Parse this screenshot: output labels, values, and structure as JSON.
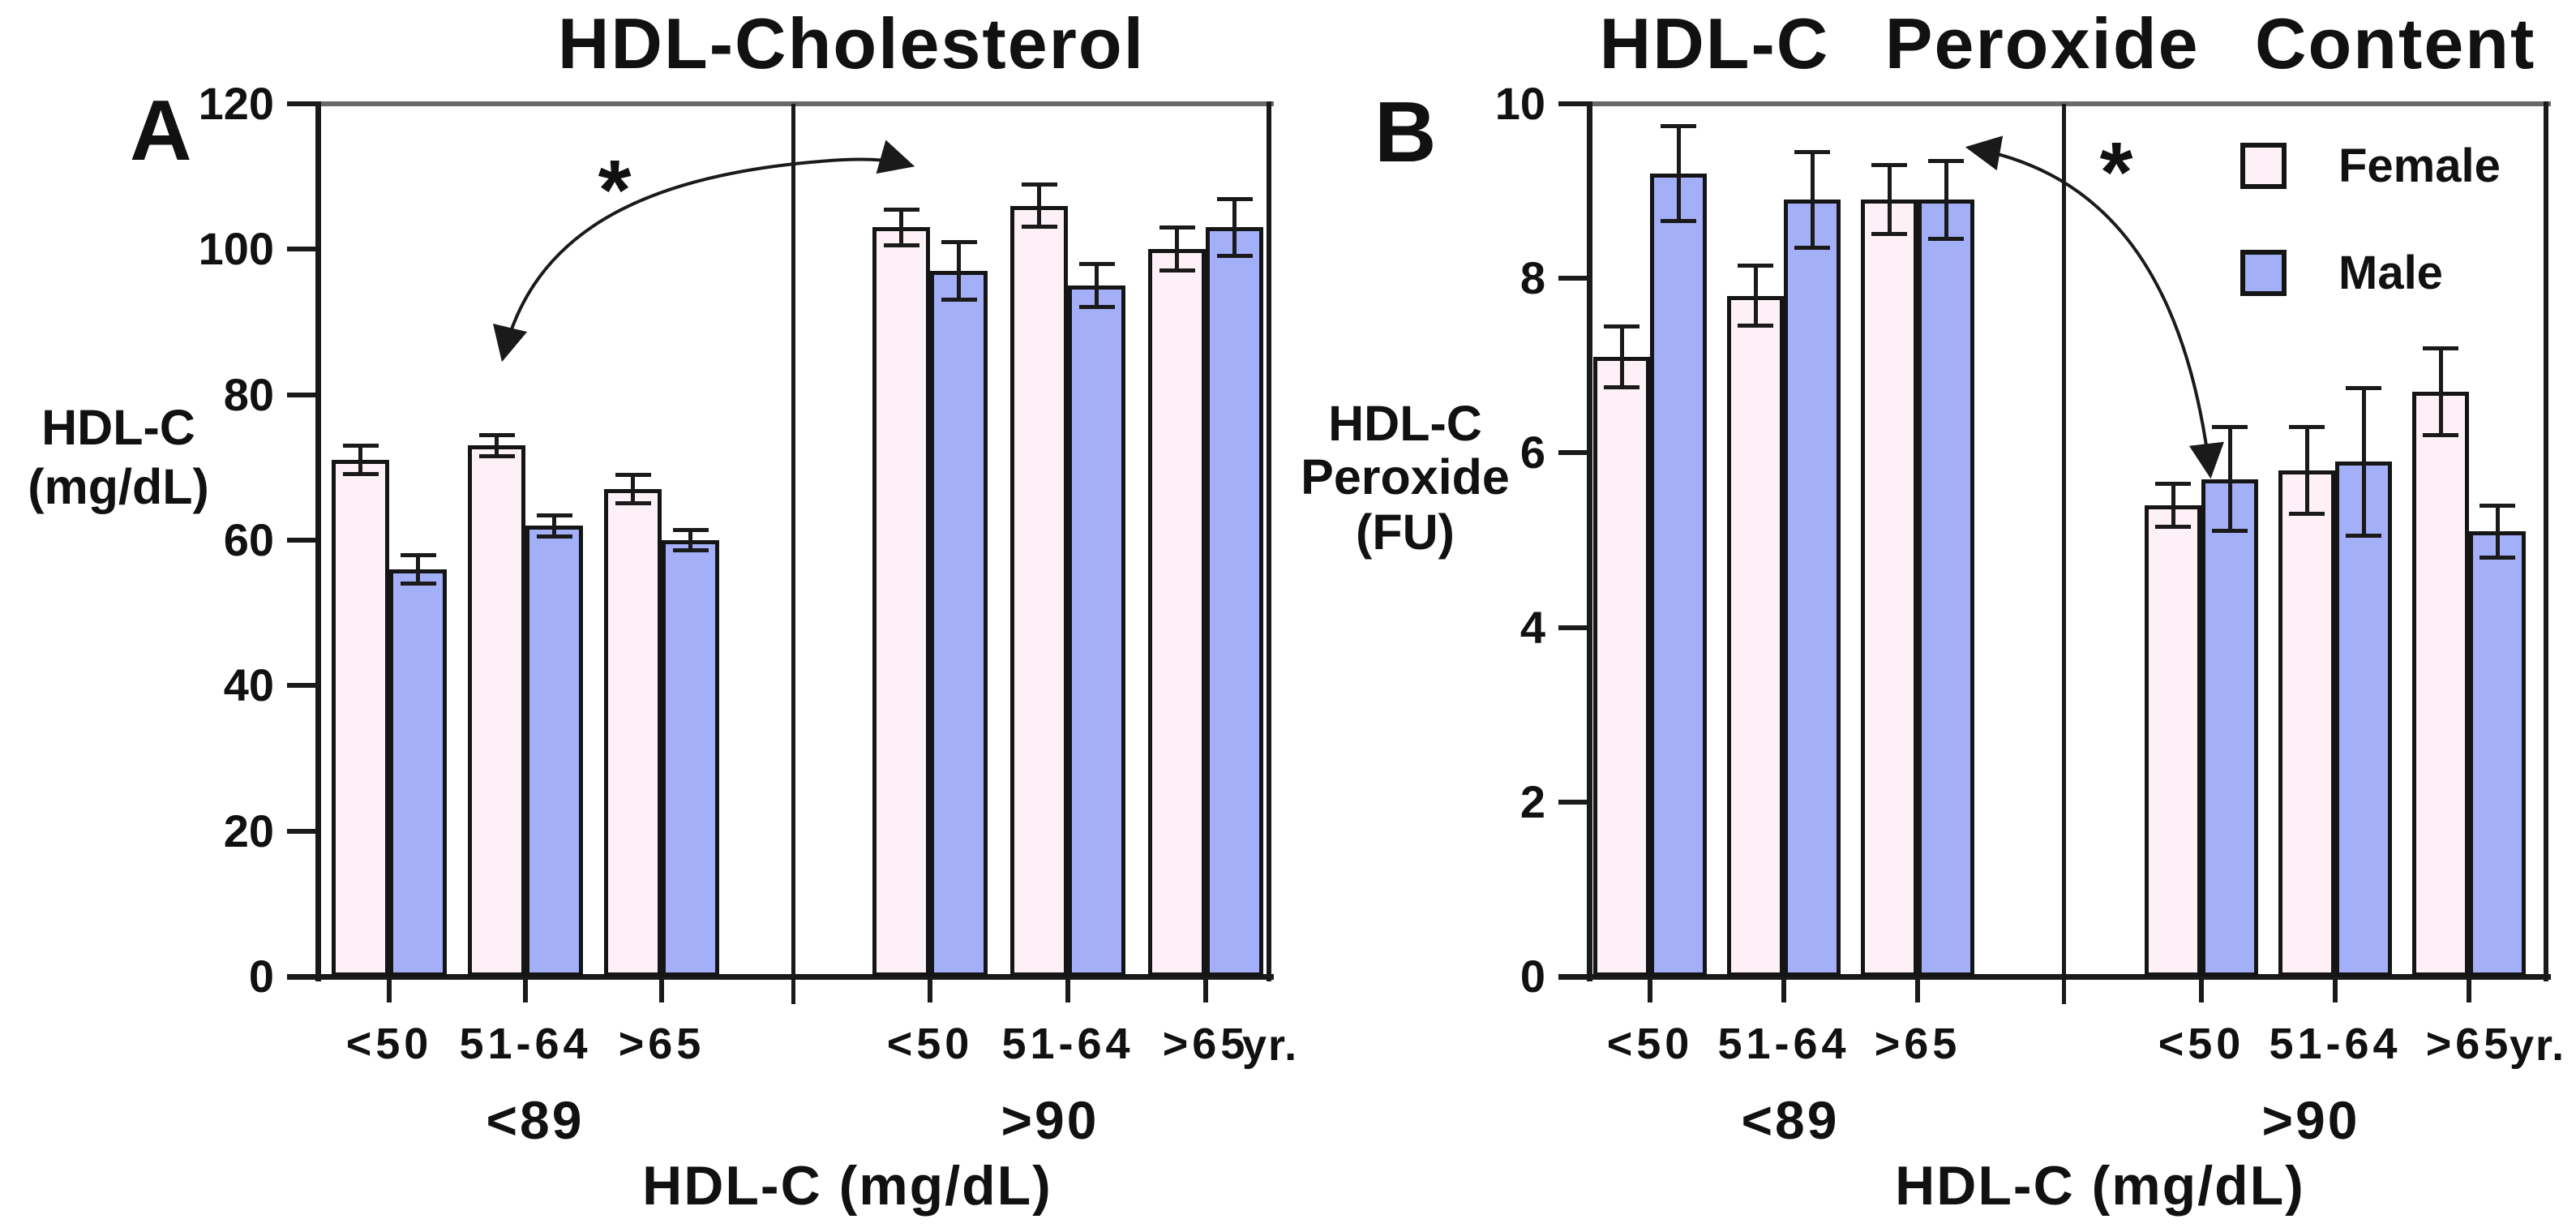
{
  "style": {
    "female_fill": "#fdf0f6",
    "male_fill": "#a3aff6",
    "axis_color": "#1a1a1a",
    "top_frame_color": "#686868",
    "text_color": "#111111",
    "background": "#ffffff"
  },
  "legend": {
    "items": [
      {
        "label": "Female",
        "color": "#fdf0f6"
      },
      {
        "label": "Male",
        "color": "#a3aff6"
      }
    ]
  },
  "chart_data": [
    {
      "type": "bar",
      "panel_label": "A",
      "title": "HDL-Cholesterol",
      "ylabel": "HDL-C (mg/dL)",
      "ylabel_lines": [
        "HDL-C",
        "(mg/dL)"
      ],
      "xlabel": "HDL-C (mg/dL)",
      "ylim": [
        0,
        120
      ],
      "yticks": [
        0,
        20,
        40,
        60,
        80,
        100,
        120
      ],
      "group_labels": [
        "<89",
        ">90"
      ],
      "categories": [
        "<50",
        "51-64",
        ">65"
      ],
      "age_unit": "yr.",
      "legend_position": "none",
      "grid": false,
      "series": [
        {
          "name": "Female",
          "group_index": 0,
          "group": "<89",
          "values": [
            71,
            73,
            67
          ],
          "errors": [
            2,
            1.5,
            2
          ]
        },
        {
          "name": "Male",
          "group_index": 0,
          "group": "<89",
          "values": [
            56,
            62,
            60
          ],
          "errors": [
            2,
            1.5,
            1.5
          ]
        },
        {
          "name": "Female",
          "group_index": 1,
          "group": ">90",
          "values": [
            103,
            106,
            100
          ],
          "errors": [
            2.5,
            3,
            3
          ]
        },
        {
          "name": "Male",
          "group_index": 1,
          "group": ">90",
          "values": [
            97,
            95,
            103
          ],
          "errors": [
            4,
            3,
            4
          ]
        }
      ],
      "annotation": {
        "symbol": "*",
        "meaning": "significant difference between <89 and >90 HDL-C groups"
      }
    },
    {
      "type": "bar",
      "panel_label": "B",
      "title": "HDL-C  Peroxide  Content",
      "ylabel": "HDL-C Peroxide (FU)",
      "ylabel_lines": [
        "HDL-C",
        "Peroxide",
        "(FU)"
      ],
      "xlabel": "HDL-C (mg/dL)",
      "ylim": [
        0,
        10
      ],
      "yticks": [
        0,
        2,
        4,
        6,
        8,
        10
      ],
      "group_labels": [
        "<89",
        ">90"
      ],
      "categories": [
        "<50",
        "51-64",
        ">65"
      ],
      "age_unit": "yr.",
      "legend_position": "top-right",
      "grid": false,
      "series": [
        {
          "name": "Female",
          "group_index": 0,
          "group": "<89",
          "values": [
            7.1,
            7.8,
            8.9
          ],
          "errors": [
            0.35,
            0.35,
            0.4
          ]
        },
        {
          "name": "Male",
          "group_index": 0,
          "group": "<89",
          "values": [
            9.2,
            8.9,
            8.9
          ],
          "errors": [
            0.55,
            0.55,
            0.45
          ]
        },
        {
          "name": "Female",
          "group_index": 1,
          "group": ">90",
          "values": [
            5.4,
            5.8,
            6.7
          ],
          "errors": [
            0.25,
            0.5,
            0.5
          ]
        },
        {
          "name": "Male",
          "group_index": 1,
          "group": ">90",
          "values": [
            5.7,
            5.9,
            5.1
          ],
          "errors": [
            0.6,
            0.85,
            0.3
          ]
        }
      ],
      "annotation": {
        "symbol": "*",
        "meaning": "significant difference between <89 and >90 HDL-C groups"
      }
    }
  ]
}
